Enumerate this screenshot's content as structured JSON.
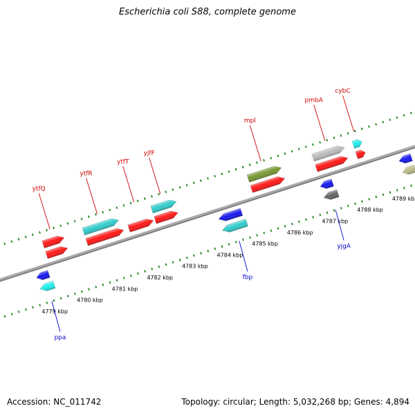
{
  "title": "Escherichia coli S88, complete genome",
  "accession": "Accession: NC_011742",
  "summary": "Topology: circular; Length: 5,032,268 bp; Genes: 4,894",
  "colors": {
    "backbone": "#999999",
    "tick": "#2e8b2e",
    "forward_label": "#cc0000",
    "reverse_label": "#0000cc",
    "red": "#ff1a1a",
    "teal": "#33cccc",
    "blue": "#1a1aee",
    "cyan": "#22eeee",
    "olive": "#779933",
    "gray": "#bbbbbb",
    "darkgray": "#666666",
    "khaki": "#bbbb88"
  },
  "ruler": [
    {
      "label": "4779 kbp",
      "kbp": 4779
    },
    {
      "label": "4780 kbp",
      "kbp": 4780
    },
    {
      "label": "4781 kbp",
      "kbp": 4781
    },
    {
      "label": "4782 kbp",
      "kbp": 4782
    },
    {
      "label": "4783 kbp",
      "kbp": 4783
    },
    {
      "label": "4784 kbp",
      "kbp": 4784
    },
    {
      "label": "4785 kbp",
      "kbp": 4785
    },
    {
      "label": "4786 kbp",
      "kbp": 4786
    },
    {
      "label": "4787 kbp",
      "kbp": 4787
    },
    {
      "label": "4788 kbp",
      "kbp": 4788
    },
    {
      "label": "4789 kbp",
      "kbp": 4789
    }
  ],
  "features": [
    {
      "label": "",
      "strand": 1,
      "track": 2,
      "start": 4779.25,
      "end": 4779.85,
      "color": "red"
    },
    {
      "label": "ytfQ",
      "strand": 1,
      "track": 1,
      "start": 4779.25,
      "end": 4779.85,
      "color": "red"
    },
    {
      "label": "",
      "strand": 1,
      "track": 2,
      "start": 4780.4,
      "end": 4781.45,
      "color": "red"
    },
    {
      "label": "ytfR",
      "strand": 1,
      "track": 1,
      "start": 4780.4,
      "end": 4781.4,
      "color": "teal"
    },
    {
      "label": "ytfT",
      "strand": 1,
      "track": 2,
      "start": 4781.6,
      "end": 4782.3,
      "color": "red"
    },
    {
      "label": "",
      "strand": 1,
      "track": 2,
      "start": 4782.35,
      "end": 4783.0,
      "color": "red"
    },
    {
      "label": "yjfF",
      "strand": 1,
      "track": 1,
      "start": 4782.35,
      "end": 4783.05,
      "color": "teal"
    },
    {
      "label": "",
      "strand": 1,
      "track": 2,
      "start": 4785.1,
      "end": 4786.05,
      "color": "red"
    },
    {
      "label": "mpl",
      "strand": 1,
      "track": 1,
      "start": 4785.1,
      "end": 4786.05,
      "color": "olive"
    },
    {
      "label": "",
      "strand": 1,
      "track": 2,
      "start": 4786.95,
      "end": 4787.85,
      "color": "red"
    },
    {
      "label": "pmbA",
      "strand": 1,
      "track": 1,
      "start": 4786.95,
      "end": 4787.85,
      "color": "gray"
    },
    {
      "label": "",
      "strand": 1,
      "track": 2,
      "start": 4788.1,
      "end": 4788.35,
      "color": "red"
    },
    {
      "label": "cybC",
      "strand": 1,
      "track": 1,
      "start": 4788.1,
      "end": 4788.35,
      "color": "cyan"
    },
    {
      "label": "",
      "strand": -1,
      "track": 1,
      "start": 4778.8,
      "end": 4779.15,
      "color": "blue"
    },
    {
      "label": "ppa",
      "strand": -1,
      "track": 2,
      "start": 4778.8,
      "end": 4779.2,
      "color": "cyan"
    },
    {
      "label": "",
      "strand": -1,
      "track": 1,
      "start": 4784.0,
      "end": 4784.65,
      "color": "blue"
    },
    {
      "label": "fbp",
      "strand": -1,
      "track": 2,
      "start": 4784.0,
      "end": 4784.7,
      "color": "teal"
    },
    {
      "label": "",
      "strand": -1,
      "track": 1,
      "start": 4786.9,
      "end": 4787.25,
      "color": "blue"
    },
    {
      "label": "yjgA",
      "strand": -1,
      "track": 2,
      "start": 4786.9,
      "end": 4787.3,
      "color": "darkgray"
    },
    {
      "label": "",
      "strand": -1,
      "track": 1,
      "start": 4789.15,
      "end": 4789.5,
      "color": "blue"
    },
    {
      "label": "",
      "strand": -1,
      "track": 2,
      "start": 4789.15,
      "end": 4789.5,
      "color": "khaki"
    }
  ]
}
